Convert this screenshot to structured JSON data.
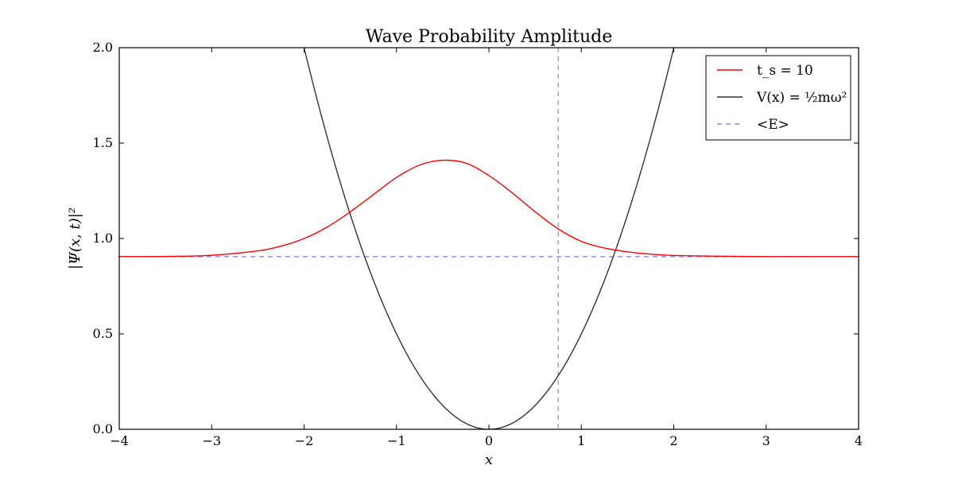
{
  "chart_data": {
    "type": "line",
    "title": "Wave Probability Amplitude",
    "xlabel": "x",
    "ylabel": "|Ψ(x, t)|²",
    "xlim": [
      -4,
      4
    ],
    "ylim": [
      0,
      2
    ],
    "x_ticks": [
      "−4",
      "−3",
      "−2",
      "−1",
      "0",
      "1",
      "2",
      "3",
      "4"
    ],
    "y_ticks": [
      "0.0",
      "0.5",
      "1.0",
      "1.5",
      "2.0"
    ],
    "grid": false,
    "legend_position": "top-right",
    "series": [
      {
        "name": "t_s = 10",
        "color": "#ff0000",
        "style": "solid",
        "x": [
          -4,
          -3.5,
          -3,
          -2.5,
          -2.25,
          -2,
          -1.75,
          -1.5,
          -1.25,
          -1,
          -0.75,
          -0.5,
          -0.25,
          0,
          0.25,
          0.5,
          0.75,
          1,
          1.25,
          1.5,
          1.75,
          2,
          2.5,
          3,
          3.5,
          4
        ],
        "y": [
          0.905,
          0.906,
          0.912,
          0.935,
          0.96,
          1.0,
          1.06,
          1.14,
          1.23,
          1.32,
          1.385,
          1.41,
          1.395,
          1.33,
          1.24,
          1.14,
          1.05,
          0.985,
          0.95,
          0.93,
          0.918,
          0.911,
          0.907,
          0.905,
          0.905,
          0.905
        ]
      },
      {
        "name": "V(x) = ½mω²",
        "color": "#333333",
        "style": "solid",
        "function": "0.5*x^2",
        "x_range": [
          -2.0,
          2.0
        ]
      },
      {
        "name": "<E>",
        "color": "#8888ee",
        "style": "dashed",
        "y": 0.905
      }
    ],
    "annotations": [
      {
        "type": "vertical-dashed-line",
        "x": 0.75,
        "color": "#999999"
      }
    ]
  }
}
